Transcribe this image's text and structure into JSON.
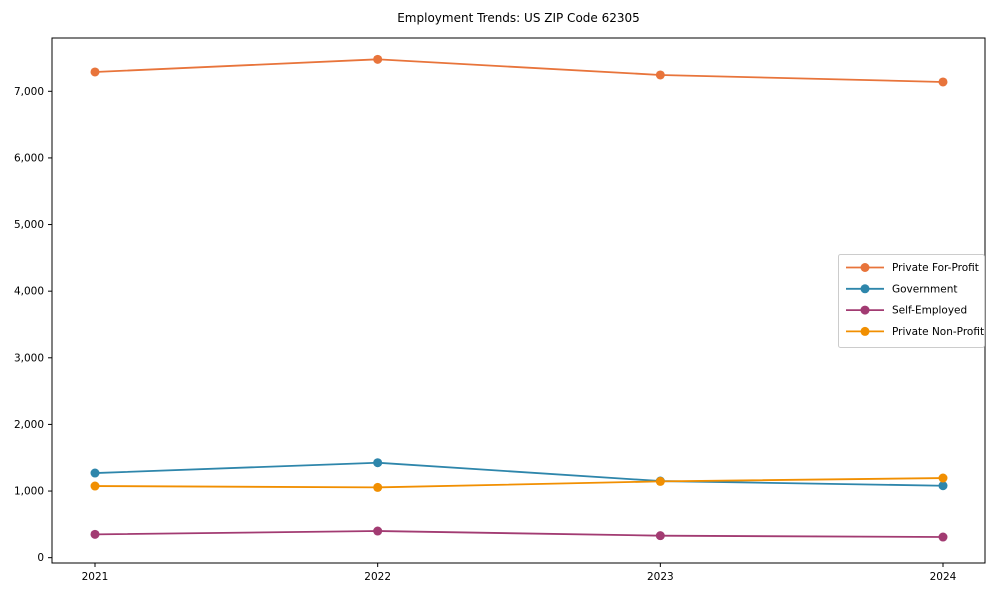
{
  "chart_data": {
    "type": "line",
    "title": "Employment Trends: US ZIP Code 62305",
    "x": [
      "2021",
      "2022",
      "2023",
      "2024"
    ],
    "series": [
      {
        "name": "Private For-Profit",
        "color": "#e8743b",
        "values": [
          7290,
          7480,
          7245,
          7140
        ]
      },
      {
        "name": "Government",
        "color": "#2e86ab",
        "values": [
          1270,
          1425,
          1150,
          1080
        ]
      },
      {
        "name": "Self-Employed",
        "color": "#a23b72",
        "values": [
          350,
          400,
          330,
          310
        ]
      },
      {
        "name": "Private Non-Profit",
        "color": "#f18f01",
        "values": [
          1075,
          1055,
          1145,
          1195
        ]
      }
    ],
    "yticks": [
      0,
      1000,
      2000,
      3000,
      4000,
      5000,
      6000,
      7000
    ],
    "ytick_labels": [
      "0",
      "1,000",
      "2,000",
      "3,000",
      "4,000",
      "5,000",
      "6,000",
      "7,000"
    ],
    "ylim": [
      -80,
      7800
    ],
    "xlabel": "",
    "ylabel": "",
    "grid": false,
    "legend_position": "center-right",
    "axis_color": "#000000",
    "legend_border_color": "#cccccc",
    "background_color": "#ffffff"
  }
}
